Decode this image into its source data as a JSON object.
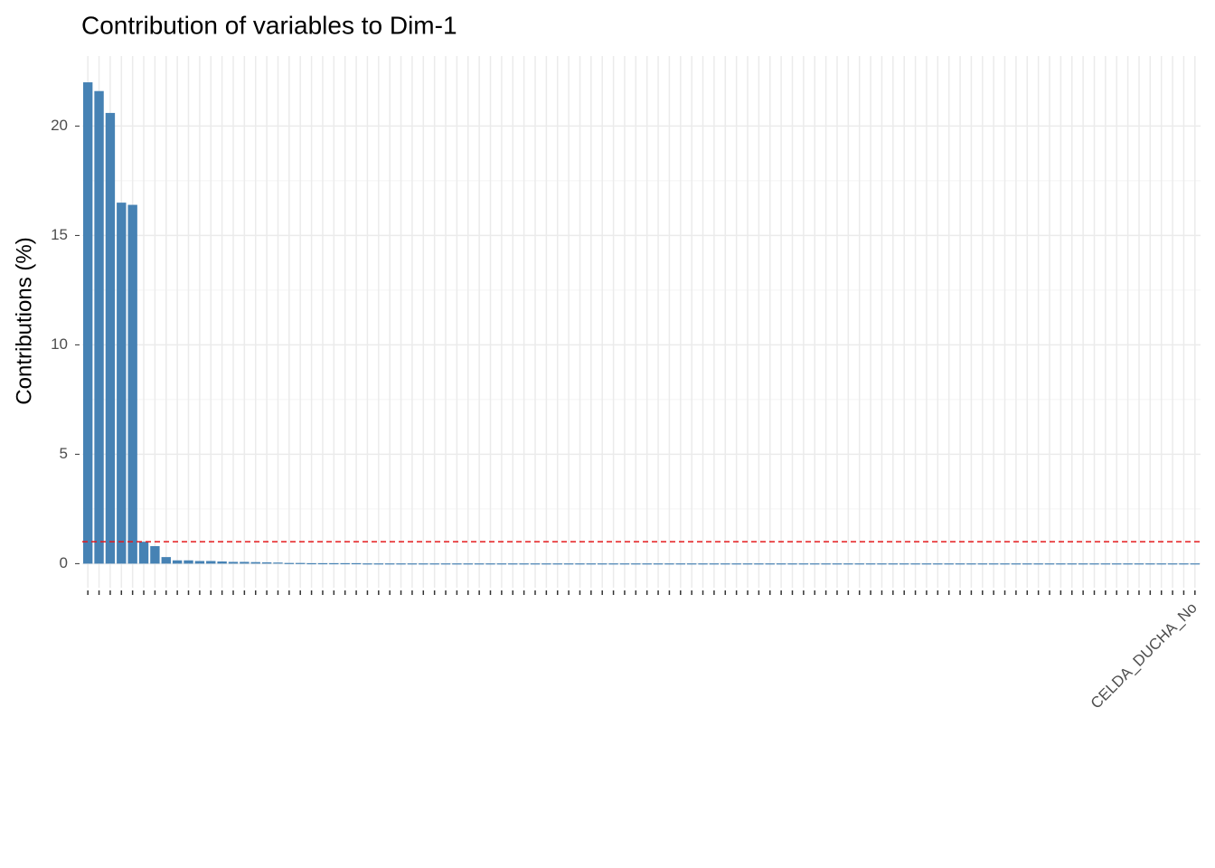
{
  "chart_data": {
    "type": "bar",
    "title": "Contribution of variables to Dim-1",
    "y_label": "Contributions (%)",
    "categories": [
      null,
      null,
      null,
      null,
      null,
      null,
      null,
      null,
      null,
      null,
      null,
      null,
      null,
      null,
      null,
      null,
      null,
      null,
      null,
      null,
      null,
      null,
      null,
      null,
      null,
      null,
      null,
      null,
      null,
      null,
      null,
      null,
      null,
      null,
      null,
      null,
      null,
      null,
      null,
      null,
      null,
      null,
      null,
      null,
      null,
      null,
      null,
      null,
      null,
      null,
      null,
      null,
      null,
      null,
      null,
      null,
      null,
      null,
      null,
      null,
      null,
      null,
      null,
      null,
      null,
      null,
      null,
      null,
      null,
      null,
      null,
      null,
      null,
      null,
      null,
      null,
      null,
      null,
      null,
      null,
      null,
      null,
      null,
      null,
      null,
      null,
      null,
      null,
      null,
      null,
      null,
      null,
      null,
      null,
      null,
      null,
      null,
      null,
      null,
      "CELDA_DUCHA_No"
    ],
    "values": [
      22.0,
      21.6,
      20.6,
      16.5,
      16.4,
      1.0,
      0.8,
      0.3,
      0.15,
      0.15,
      0.12,
      0.12,
      0.1,
      0.08,
      0.08,
      0.07,
      0.06,
      0.05,
      0.03,
      0.03,
      0.02,
      0.02,
      0.02,
      0.02,
      0.02,
      0.01,
      0.01,
      0.01,
      0.01,
      0.01,
      0.01,
      0.01,
      0.01,
      0.01,
      0.01,
      0.01,
      0.01,
      0.01,
      0.01,
      0.01,
      0.01,
      0.01,
      0.01,
      0.01,
      0.01,
      0.01,
      0.01,
      0.01,
      0.01,
      0.01,
      0.01,
      0.01,
      0.01,
      0.01,
      0.01,
      0.01,
      0.01,
      0.01,
      0.01,
      0.01,
      0.01,
      0.01,
      0.01,
      0.01,
      0.01,
      0.01,
      0.01,
      0.01,
      0.01,
      0.01,
      0.01,
      0.01,
      0.01,
      0.01,
      0.01,
      0.01,
      0.01,
      0.01,
      0.01,
      0.01,
      0.01,
      0.01,
      0.01,
      0.01,
      0.01,
      0.01,
      0.01,
      0.01,
      0.01,
      0.01,
      0.01,
      0.01,
      0.01,
      0.01,
      0.01,
      0.01,
      0.01,
      0.01,
      0.01,
      0.01
    ],
    "color": "#4682b4",
    "reference_line": 1.0,
    "reference_color": "#e41a1c",
    "ylim": [
      -1.1,
      23.2
    ],
    "yticks": [
      0,
      5,
      10,
      15,
      20
    ],
    "grid": true
  }
}
